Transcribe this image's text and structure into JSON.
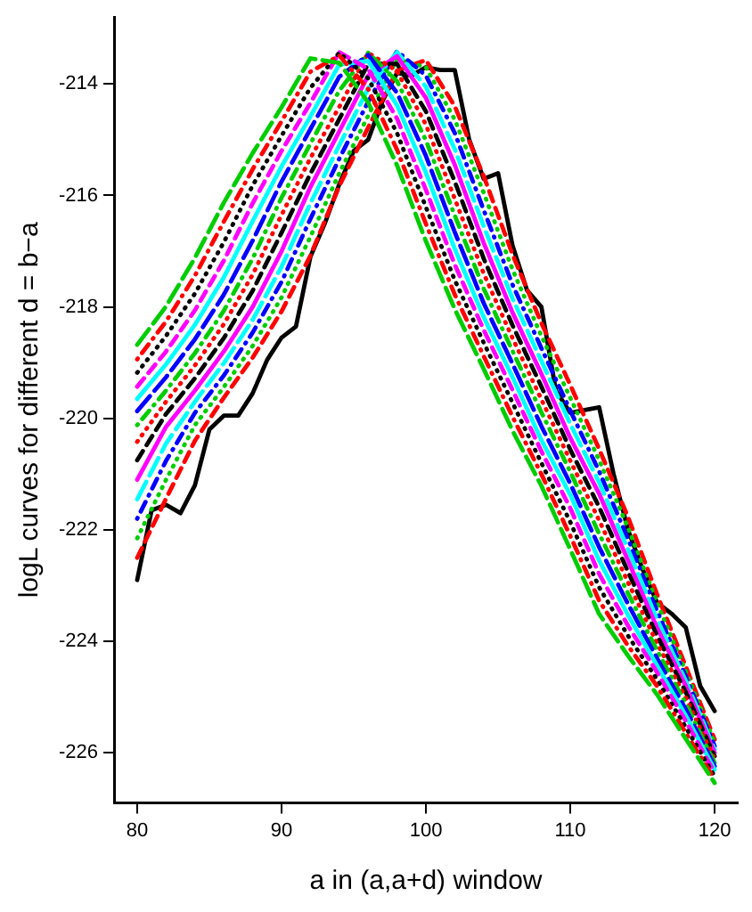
{
  "chart_data": {
    "type": "line",
    "xlabel": "a in (a,a+d) window",
    "ylabel": "logL curves for different d = b−a",
    "xlim": [
      78.4,
      121.6
    ],
    "xticks": [
      80,
      90,
      100,
      110,
      120
    ],
    "ylim": [
      -226.9,
      -212.8
    ],
    "yticks": [
      -226,
      -224,
      -222,
      -220,
      -218,
      -216,
      -214
    ],
    "grid": false,
    "legend": false,
    "marker": "none",
    "x": [
      80,
      82,
      84,
      86,
      88,
      90,
      92,
      94,
      96,
      98,
      100,
      102,
      104,
      106,
      108,
      110,
      112,
      114,
      116,
      118,
      120
    ],
    "series": [
      {
        "color": "#000000",
        "line_style": "solid",
        "x": [
          80,
          81,
          82,
          83,
          84,
          85,
          86,
          87,
          88,
          89,
          90,
          91,
          92,
          93,
          94,
          95,
          96,
          97,
          98,
          99,
          100,
          101,
          102,
          103,
          104,
          105,
          106,
          107,
          108,
          109,
          110,
          111,
          112,
          113,
          114,
          115,
          116,
          117,
          118,
          119,
          120
        ],
        "values": [
          -222.9,
          -221.65,
          -221.55,
          -221.7,
          -221.2,
          -220.2,
          -219.95,
          -219.95,
          -219.55,
          -218.95,
          -218.55,
          -218.35,
          -217.1,
          -216.5,
          -215.8,
          -215.2,
          -215.0,
          -214.3,
          -213.8,
          -213.85,
          -213.7,
          -213.75,
          -213.75,
          -215.0,
          -215.7,
          -215.6,
          -216.9,
          -217.7,
          -218.0,
          -219.5,
          -219.9,
          -219.85,
          -219.8,
          -221.0,
          -222.0,
          -222.7,
          -223.3,
          -223.5,
          -223.75,
          -224.8,
          -225.25
        ]
      },
      {
        "color": "#ff0000",
        "line_style": "dashed",
        "values": [
          -222.5,
          -221.44,
          -220.4,
          -219.63,
          -218.91,
          -218.08,
          -217.08,
          -215.83,
          -214.78,
          -213.76,
          -213.57,
          -214.4,
          -215.65,
          -217.06,
          -218.29,
          -219.4,
          -220.55,
          -221.77,
          -223.15,
          -224.45,
          -225.76
        ]
      },
      {
        "color": "#00cd00",
        "line_style": "dotted",
        "values": [
          -222.15,
          -221.1,
          -220.12,
          -219.44,
          -218.7,
          -217.83,
          -216.74,
          -215.6,
          -214.57,
          -213.55,
          -213.7,
          -214.64,
          -215.95,
          -217.33,
          -218.52,
          -219.63,
          -220.75,
          -221.96,
          -223.3,
          -224.54,
          -225.82
        ]
      },
      {
        "color": "#0000ff",
        "line_style": "dashdot",
        "values": [
          -221.8,
          -220.76,
          -219.9,
          -219.23,
          -218.46,
          -217.55,
          -216.42,
          -215.34,
          -214.32,
          -213.41,
          -213.85,
          -214.88,
          -216.26,
          -217.6,
          -218.74,
          -219.86,
          -220.95,
          -222.16,
          -223.45,
          -224.63,
          -225.88
        ]
      },
      {
        "color": "#00ffff",
        "line_style": "longdash",
        "values": [
          -221.45,
          -220.45,
          -219.7,
          -219.01,
          -218.23,
          -217.28,
          -216.14,
          -215.1,
          -214.08,
          -213.43,
          -214.05,
          -215.17,
          -216.55,
          -217.85,
          -218.97,
          -220.1,
          -221.15,
          -222.35,
          -223.6,
          -224.71,
          -225.94
        ]
      },
      {
        "color": "#ff00ff",
        "line_style": "solid",
        "values": [
          -221.1,
          -220.15,
          -219.5,
          -218.8,
          -218.0,
          -217.0,
          -215.85,
          -214.85,
          -213.85,
          -213.5,
          -214.25,
          -215.45,
          -216.85,
          -218.1,
          -219.2,
          -220.35,
          -221.35,
          -222.55,
          -223.75,
          -224.8,
          -226.0
        ]
      },
      {
        "color": "#000000",
        "line_style": "dashed",
        "values": [
          -220.75,
          -219.92,
          -219.28,
          -218.56,
          -217.71,
          -216.67,
          -215.61,
          -214.63,
          -213.64,
          -213.64,
          -214.49,
          -215.75,
          -217.13,
          -218.33,
          -219.43,
          -220.56,
          -221.59,
          -222.75,
          -223.89,
          -224.91,
          -226.06
        ]
      },
      {
        "color": "#ff0000",
        "line_style": "dotted",
        "values": [
          -220.42,
          -219.7,
          -219.05,
          -218.31,
          -217.42,
          -216.35,
          -215.33,
          -214.41,
          -213.44,
          -213.77,
          -214.73,
          -216.06,
          -217.4,
          -218.56,
          -219.66,
          -220.76,
          -221.83,
          -222.94,
          -224.03,
          -225.01,
          -226.12
        ]
      },
      {
        "color": "#00cd00",
        "line_style": "dashdot",
        "values": [
          -220.12,
          -219.5,
          -218.83,
          -218.07,
          -217.13,
          -216.04,
          -215.07,
          -214.12,
          -213.44,
          -213.95,
          -215.01,
          -216.36,
          -217.67,
          -218.79,
          -219.89,
          -220.96,
          -222.07,
          -223.14,
          -224.16,
          -225.12,
          -226.18
        ]
      },
      {
        "color": "#0000ff",
        "line_style": "longdash",
        "values": [
          -219.87,
          -219.26,
          -218.58,
          -217.78,
          -216.81,
          -215.75,
          -214.81,
          -213.87,
          -213.48,
          -214.16,
          -215.29,
          -216.66,
          -217.93,
          -219.02,
          -220.14,
          -221.17,
          -222.31,
          -223.33,
          -224.3,
          -225.22,
          -226.24
        ]
      },
      {
        "color": "#00ffff",
        "line_style": "solid",
        "values": [
          -219.65,
          -219.03,
          -218.32,
          -217.47,
          -216.46,
          -215.48,
          -214.58,
          -213.65,
          -213.59,
          -214.38,
          -215.59,
          -216.96,
          -218.18,
          -219.26,
          -220.39,
          -221.37,
          -222.55,
          -223.53,
          -224.43,
          -225.33,
          -226.3
        ]
      },
      {
        "color": "#ff00ff",
        "line_style": "dashed",
        "values": [
          -219.43,
          -218.8,
          -218.06,
          -217.17,
          -216.14,
          -215.2,
          -214.34,
          -213.43,
          -213.73,
          -214.62,
          -215.9,
          -217.24,
          -218.41,
          -219.49,
          -220.59,
          -221.61,
          -222.79,
          -223.72,
          -224.55,
          -225.43,
          -226.36
        ]
      },
      {
        "color": "#000000",
        "line_style": "dotted",
        "values": [
          -219.18,
          -218.52,
          -217.76,
          -216.84,
          -215.82,
          -214.93,
          -214.07,
          -213.44,
          -213.9,
          -214.88,
          -216.21,
          -217.52,
          -218.64,
          -219.72,
          -220.8,
          -221.86,
          -223.03,
          -223.9,
          -224.68,
          -225.54,
          -226.42
        ]
      },
      {
        "color": "#ff0000",
        "line_style": "dashdot",
        "values": [
          -218.94,
          -218.26,
          -217.44,
          -216.47,
          -215.53,
          -214.67,
          -213.78,
          -213.49,
          -214.09,
          -215.18,
          -216.51,
          -217.78,
          -218.88,
          -219.97,
          -221.0,
          -222.11,
          -223.27,
          -224.08,
          -224.8,
          -225.64,
          -226.48
        ]
      },
      {
        "color": "#00cd00",
        "line_style": "longdash",
        "values": [
          -218.68,
          -217.99,
          -217.12,
          -216.13,
          -215.24,
          -214.42,
          -213.54,
          -213.62,
          -214.33,
          -215.46,
          -216.82,
          -218.04,
          -219.11,
          -220.22,
          -221.21,
          -222.35,
          -223.51,
          -224.26,
          -224.95,
          -225.75,
          -226.54
        ]
      }
    ]
  }
}
